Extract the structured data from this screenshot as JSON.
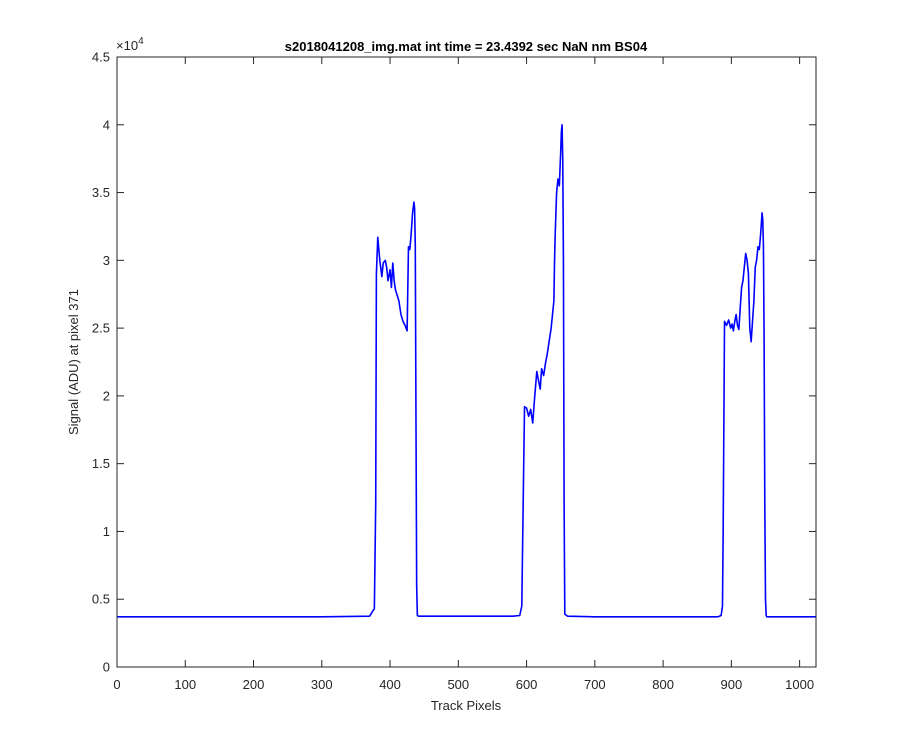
{
  "chart_data": {
    "type": "line",
    "title": "s2018041208_img.mat int time = 23.4392 sec  NaN nm BS04",
    "xlabel": "Track Pixels",
    "ylabel": "Signal (ADU) at pixel 371",
    "y_exponent_label": "×10",
    "y_exponent_power": "4",
    "xlim": [
      0,
      1024
    ],
    "ylim": [
      0,
      45000
    ],
    "x_ticks": [
      0,
      100,
      200,
      300,
      400,
      500,
      600,
      700,
      800,
      900,
      1000
    ],
    "x_tick_labels": [
      "0",
      "100",
      "200",
      "300",
      "400",
      "500",
      "600",
      "700",
      "800",
      "900",
      "1000"
    ],
    "y_ticks": [
      0,
      5000,
      10000,
      15000,
      20000,
      25000,
      30000,
      35000,
      40000,
      45000
    ],
    "y_tick_labels": [
      "0",
      "0.5",
      "1",
      "1.5",
      "2",
      "2.5",
      "3",
      "3.5",
      "4",
      "4.5"
    ],
    "grid": false,
    "line_color": "#0000ff",
    "series": [
      {
        "x": [
          0,
          100,
          200,
          300,
          370,
          377,
          379,
          380,
          382,
          385,
          388,
          390,
          393,
          395,
          397,
          400,
          402,
          404,
          406,
          408,
          410,
          413,
          416,
          419,
          422,
          425,
          427,
          429,
          431,
          433,
          435,
          436,
          437,
          438,
          439,
          440,
          442,
          450,
          500,
          580,
          590,
          593,
          595,
          597,
          600,
          603,
          606,
          609,
          612,
          615,
          618,
          620,
          622,
          625,
          628,
          630,
          633,
          636,
          639,
          640,
          641,
          642,
          644,
          646,
          648,
          650,
          651,
          652,
          653,
          654,
          655,
          656,
          660,
          700,
          800,
          880,
          885,
          887,
          888,
          890,
          893,
          896,
          899,
          901,
          903,
          905,
          907,
          909,
          911,
          913,
          915,
          917,
          919,
          921,
          923,
          925,
          927,
          929,
          931,
          933,
          935,
          937,
          939,
          941,
          943,
          945,
          946,
          947,
          948,
          949,
          950,
          951,
          952,
          955,
          1000,
          1024
        ],
        "y": [
          3700,
          3700,
          3700,
          3700,
          3750,
          4300,
          12000,
          29000,
          31700,
          30000,
          28800,
          29800,
          30000,
          29500,
          28500,
          29300,
          28000,
          29800,
          28500,
          27800,
          27500,
          27000,
          26000,
          25500,
          25200,
          24800,
          31000,
          30800,
          32000,
          33500,
          34300,
          33800,
          31000,
          18000,
          6000,
          3800,
          3750,
          3750,
          3750,
          3750,
          3800,
          4500,
          12000,
          19200,
          19100,
          18500,
          19000,
          18000,
          20000,
          21800,
          21000,
          20500,
          22000,
          21500,
          22500,
          23000,
          24000,
          25000,
          26500,
          27000,
          30000,
          32000,
          35000,
          36000,
          35500,
          38000,
          39500,
          40000,
          37500,
          30000,
          12000,
          3900,
          3750,
          3700,
          3700,
          3700,
          3800,
          4500,
          10000,
          25500,
          25200,
          25600,
          25000,
          25300,
          24800,
          25500,
          26000,
          25200,
          24900,
          26500,
          28000,
          28500,
          29500,
          30500,
          30000,
          29000,
          25000,
          24000,
          25500,
          27000,
          29500,
          30000,
          31000,
          30800,
          32000,
          33500,
          33000,
          31000,
          24000,
          12000,
          5000,
          3800,
          3700,
          3700,
          3700,
          3700
        ]
      }
    ]
  }
}
